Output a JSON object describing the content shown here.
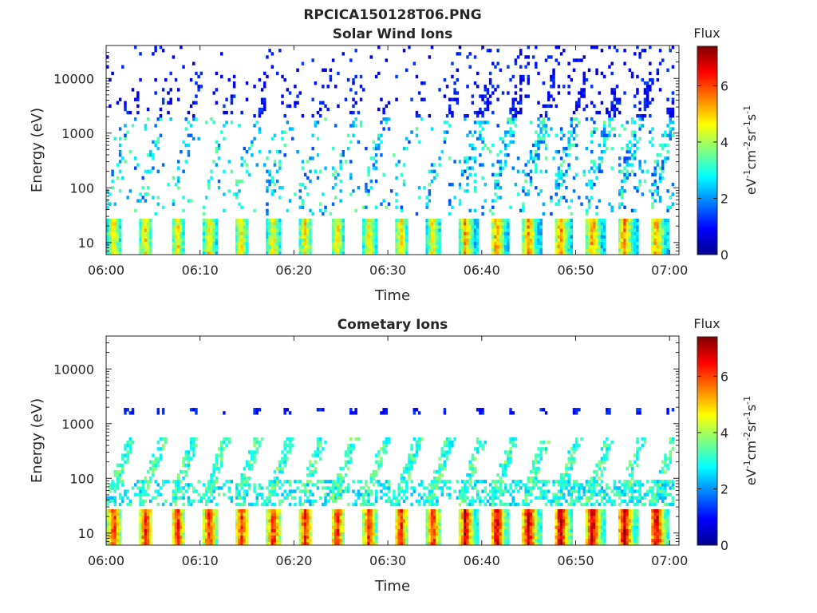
{
  "figure": {
    "title": "RPCICA150128T06.PNG"
  },
  "panels": [
    {
      "id": "solar",
      "title": "Solar Wind Ions",
      "xlabel": "Time",
      "ylabel": "Energy (eV)",
      "colorbar_label": "Flux",
      "colorbar_unit": {
        "base1": "eV",
        "sup1": "-1",
        "base2": "cm",
        "sup2": "-2",
        "base3": "sr",
        "sup3": "-1",
        "base4": "s",
        "sup4": "-1"
      }
    },
    {
      "id": "comet",
      "title": "Cometary Ions",
      "xlabel": "Time",
      "ylabel": "Energy (eV)",
      "colorbar_label": "Flux",
      "colorbar_unit": {
        "base1": "eV",
        "sup1": "-1",
        "base2": "cm",
        "sup2": "-2",
        "base3": "sr",
        "sup3": "-1",
        "base4": "s",
        "sup4": "-1"
      }
    }
  ],
  "chart_data": [
    {
      "type": "heatmap",
      "title": "Solar Wind Ions",
      "xlabel": "Time",
      "ylabel": "Energy (eV)",
      "x_ticks": [
        "06:00",
        "06:10",
        "06:20",
        "06:30",
        "06:40",
        "06:50",
        "07:00"
      ],
      "x_range_min": [
        0,
        61
      ],
      "y_ticks": [
        10,
        100,
        1000,
        10000
      ],
      "y_scale": "log",
      "y_range": [
        6,
        40000
      ],
      "colorbar": {
        "label": "Flux",
        "ticks": [
          0,
          2,
          4,
          6
        ],
        "range": [
          0,
          7.4
        ],
        "colormap": "jet"
      },
      "pattern": {
        "low_band_ev": [
          6,
          27
        ],
        "sweep_period_min": 3.4,
        "sparse_until_ev": 40000,
        "low_band_peak_flux": 5.5
      }
    },
    {
      "type": "heatmap",
      "title": "Cometary Ions",
      "xlabel": "Time",
      "ylabel": "Energy (eV)",
      "x_ticks": [
        "06:00",
        "06:10",
        "06:20",
        "06:30",
        "06:40",
        "06:50",
        "07:00"
      ],
      "x_range_min": [
        0,
        61
      ],
      "y_ticks": [
        10,
        100,
        1000,
        10000
      ],
      "y_scale": "log",
      "y_range": [
        6,
        40000
      ],
      "colorbar": {
        "label": "Flux",
        "ticks": [
          0,
          2,
          4,
          6
        ],
        "range": [
          0,
          7.4
        ],
        "colormap": "jet"
      },
      "pattern": {
        "low_band_ev": [
          6,
          27
        ],
        "sweep_period_min": 3.4,
        "mid_band_ev": [
          30,
          600
        ],
        "line_ev": 1700,
        "low_band_peak_flux": 7.0
      }
    }
  ]
}
